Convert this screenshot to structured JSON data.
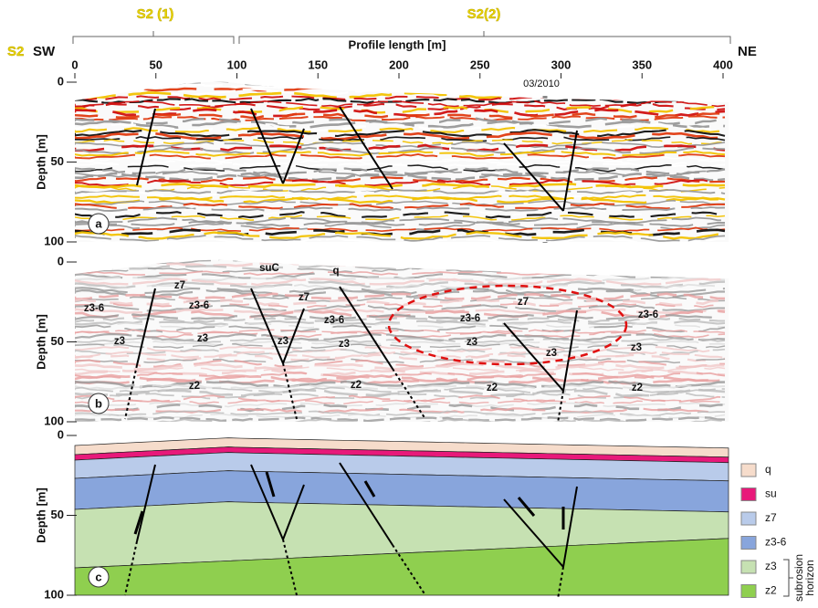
{
  "header": {
    "segments": [
      "S2 (1)",
      "S2(2)"
    ],
    "profile": "S2",
    "sw": "SW",
    "ne": "NE",
    "x_axis_title": "Profile length [m]",
    "x_ticks": [
      0,
      50,
      100,
      150,
      200,
      250,
      300,
      350,
      400
    ],
    "date_marker": "03/2010"
  },
  "panels": [
    {
      "label": "a",
      "y_axis_title": "Depth [m]",
      "y_ticks": [
        0,
        50,
        100
      ]
    },
    {
      "label": "b",
      "y_axis_title": "Depth [m]",
      "y_ticks": [
        0,
        50,
        100
      ],
      "annotations": [
        "suC",
        "q",
        "z7",
        "z7",
        "z7",
        "z3-6",
        "z3-6",
        "z3-6",
        "z3-6",
        "z3-6",
        "z3",
        "z3",
        "z3",
        "z3",
        "z3",
        "z3",
        "z3",
        "z2",
        "z2",
        "z2",
        "z2"
      ]
    },
    {
      "label": "c",
      "y_axis_title": "Depth [m]",
      "y_ticks": [
        0,
        50,
        100
      ]
    }
  ],
  "legend": [
    {
      "name": "q",
      "color": "#f6dccb"
    },
    {
      "name": "su",
      "color": "#e8197a"
    },
    {
      "name": "z7",
      "color": "#b9cbea"
    },
    {
      "name": "z3-6",
      "color": "#88a5dc"
    },
    {
      "name": "z3",
      "color": "#c6e1b2"
    },
    {
      "name": "z2",
      "color": "#8fcf4f"
    }
  ],
  "legend_note": [
    "subrosion",
    "horizon"
  ]
}
